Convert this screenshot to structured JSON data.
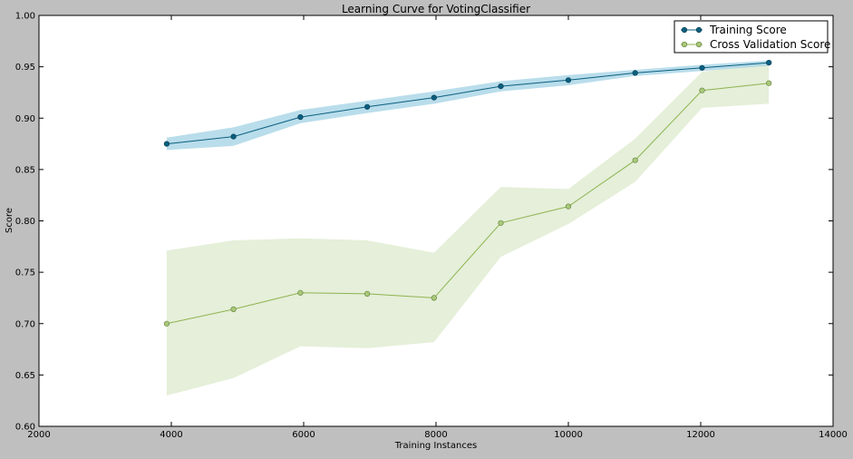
{
  "chart_data": {
    "type": "line",
    "title": "Learning Curve for VotingClassifier",
    "xlabel": "Training Instances",
    "ylabel": "Score",
    "xlim": [
      2000,
      14000
    ],
    "ylim": [
      0.6,
      1.0
    ],
    "xticks": [
      "2000",
      "4000",
      "6000",
      "8000",
      "10000",
      "12000",
      "14000"
    ],
    "yticks": [
      "0.60",
      "0.65",
      "0.70",
      "0.75",
      "0.80",
      "0.85",
      "0.90",
      "0.95",
      "1.00"
    ],
    "grid": false,
    "legend_position": "top-right",
    "x": [
      3930,
      4940,
      5950,
      6960,
      7970,
      8980,
      10000,
      11010,
      12020,
      13030
    ],
    "series": [
      {
        "name": "Training Score",
        "color": "#0b5f7f",
        "band_color": "#a8d4e6",
        "values": [
          0.875,
          0.882,
          0.901,
          0.911,
          0.92,
          0.931,
          0.937,
          0.944,
          0.949,
          0.954
        ],
        "lower": [
          0.869,
          0.873,
          0.895,
          0.905,
          0.914,
          0.926,
          0.932,
          0.941,
          0.946,
          0.951
        ],
        "upper": [
          0.881,
          0.891,
          0.908,
          0.917,
          0.926,
          0.936,
          0.942,
          0.947,
          0.952,
          0.956
        ]
      },
      {
        "name": "Cross Validation Score",
        "color": "#8db350",
        "marker_color": "#a8c87a",
        "band_color": "#dce9cc",
        "values": [
          0.7,
          0.714,
          0.73,
          0.729,
          0.725,
          0.798,
          0.814,
          0.859,
          0.927,
          0.934
        ],
        "lower": [
          0.63,
          0.647,
          0.678,
          0.676,
          0.682,
          0.765,
          0.797,
          0.838,
          0.91,
          0.914
        ],
        "upper": [
          0.771,
          0.781,
          0.783,
          0.781,
          0.769,
          0.833,
          0.831,
          0.88,
          0.945,
          0.955
        ]
      }
    ]
  }
}
